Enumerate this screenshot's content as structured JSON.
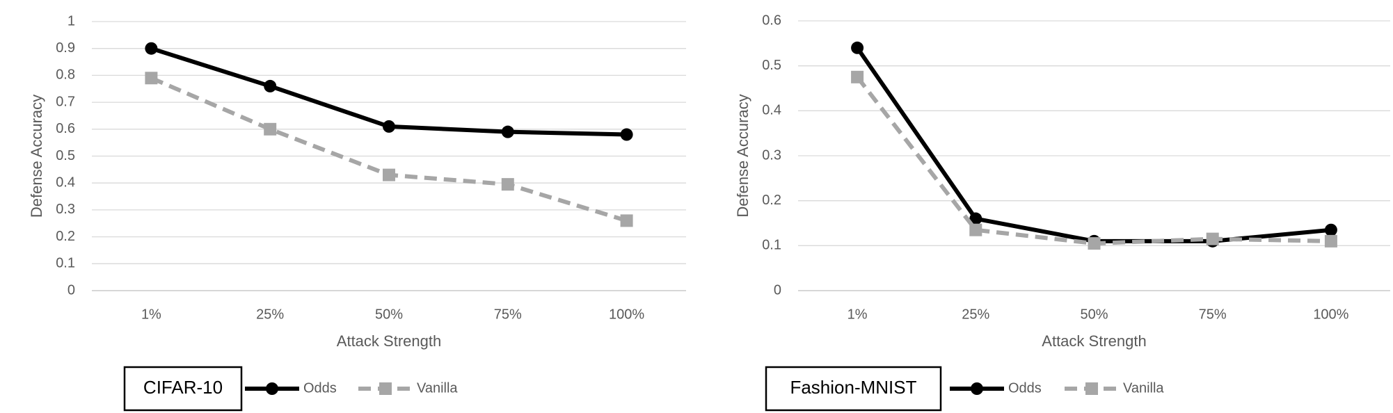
{
  "chart_data": [
    {
      "type": "line",
      "title": "CIFAR-10",
      "x_label": "Attack Strength",
      "y_label": "Defense Accuracy",
      "categories": [
        "1%",
        "25%",
        "50%",
        "75%",
        "100%"
      ],
      "series": [
        {
          "name": "Odds",
          "color": "#000000",
          "marker": "circle",
          "line_style": "solid",
          "values": [
            0.9,
            0.76,
            0.61,
            0.59,
            0.58
          ]
        },
        {
          "name": "Vanilla",
          "color": "#a6a6a6",
          "marker": "square",
          "line_style": "dashed",
          "values": [
            0.79,
            0.6,
            0.43,
            0.395,
            0.26
          ]
        }
      ],
      "ylim": [
        0,
        1
      ],
      "yticks": [
        0,
        0.1,
        0.2,
        0.3,
        0.4,
        0.5,
        0.6,
        0.7,
        0.8,
        0.9,
        1
      ],
      "grid": true,
      "legend": "bottom"
    },
    {
      "type": "line",
      "title": "Fashion-MNIST",
      "x_label": "Attack Strength",
      "y_label": "Defense Accuracy",
      "categories": [
        "1%",
        "25%",
        "50%",
        "75%",
        "100%"
      ],
      "series": [
        {
          "name": "Odds",
          "color": "#000000",
          "marker": "circle",
          "line_style": "solid",
          "values": [
            0.54,
            0.16,
            0.11,
            0.11,
            0.135
          ]
        },
        {
          "name": "Vanilla",
          "color": "#a6a6a6",
          "marker": "square",
          "line_style": "dashed",
          "values": [
            0.475,
            0.135,
            0.105,
            0.115,
            0.11
          ]
        }
      ],
      "ylim": [
        0,
        0.6
      ],
      "yticks": [
        0,
        0.1,
        0.2,
        0.3,
        0.4,
        0.5,
        0.6
      ],
      "grid": true,
      "legend": "bottom"
    }
  ]
}
